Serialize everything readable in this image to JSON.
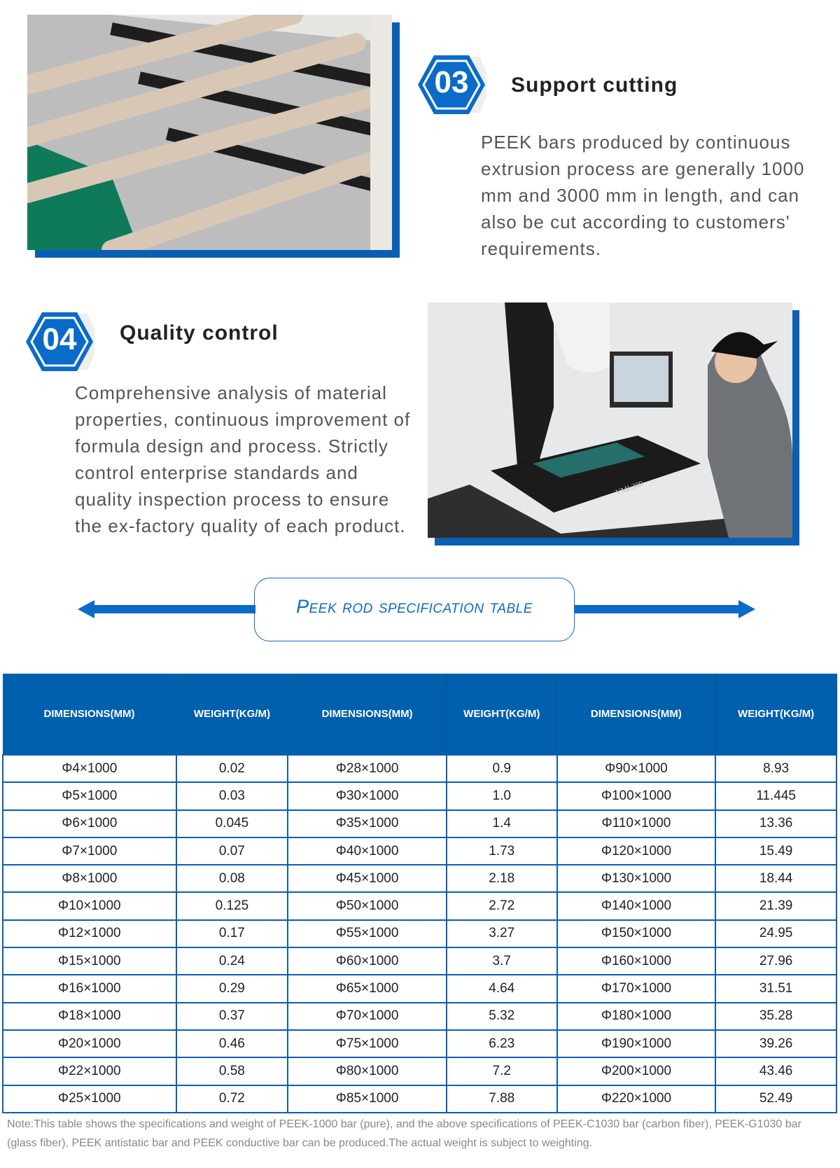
{
  "sections": [
    {
      "number": "03",
      "title": "Support cutting",
      "text": "PEEK bars produced by continuous extrusion process are generally 1000 mm and 3000 mm in length, and can also be cut according to customers' requirements."
    },
    {
      "number": "04",
      "title": "Quality control",
      "text": "Comprehensive analysis of material properties, continuous improvement of formula design and process. Strictly control enterprise standards and quality inspection process to ensure the ex-factory quality of each product."
    }
  ],
  "photo2_label": "VML300",
  "banner": {
    "title": "Peek rod specification table"
  },
  "colors": {
    "accent": "#0a6bc8",
    "header_bg": "#0060ad"
  },
  "table": {
    "headers": [
      "DIMENSIONS(MM)",
      "WEIGHT(KG/M)",
      "DIMENSIONS(MM)",
      "WEIGHT(KG/M)",
      "DIMENSIONS(MM)",
      "WEIGHT(KG/M)"
    ],
    "rows": [
      [
        "Φ4×1000",
        "0.02",
        "Φ28×1000",
        "0.9",
        "Φ90×1000",
        "8.93"
      ],
      [
        "Φ5×1000",
        "0.03",
        "Φ30×1000",
        "1.0",
        "Φ100×1000",
        "11.445"
      ],
      [
        "Φ6×1000",
        "0.045",
        "Φ35×1000",
        "1.4",
        "Φ110×1000",
        "13.36"
      ],
      [
        "Φ7×1000",
        "0.07",
        "Φ40×1000",
        "1.73",
        "Φ120×1000",
        "15.49"
      ],
      [
        "Φ8×1000",
        "0.08",
        "Φ45×1000",
        "2.18",
        "Φ130×1000",
        "18.44"
      ],
      [
        "Φ10×1000",
        "0.125",
        "Φ50×1000",
        "2.72",
        "Φ140×1000",
        "21.39"
      ],
      [
        "Φ12×1000",
        "0.17",
        "Φ55×1000",
        "3.27",
        "Φ150×1000",
        "24.95"
      ],
      [
        "Φ15×1000",
        "0.24",
        "Φ60×1000",
        "3.7",
        "Φ160×1000",
        "27.96"
      ],
      [
        "Φ16×1000",
        "0.29",
        "Φ65×1000",
        "4.64",
        "Φ170×1000",
        "31.51"
      ],
      [
        "Φ18×1000",
        "0.37",
        "Φ70×1000",
        "5.32",
        "Φ180×1000",
        "35.28"
      ],
      [
        "Φ20×1000",
        "0.46",
        "Φ75×1000",
        "6.23",
        "Φ190×1000",
        "39.26"
      ],
      [
        "Φ22×1000",
        "0.58",
        "Φ80×1000",
        "7.2",
        "Φ200×1000",
        "43.46"
      ],
      [
        "Φ25×1000",
        "0.72",
        "Φ85×1000",
        "7.88",
        "Φ220×1000",
        "52.49"
      ]
    ]
  },
  "note": "Note:This table shows the specifications and weight of PEEK-1000 bar (pure), and the above specifications of PEEK-C1030 bar (carbon fiber), PEEK-G1030 bar (glass fiber), PEEK antistatic bar and PEEK conductive bar can be produced.The actual weight is subject to weighting."
}
